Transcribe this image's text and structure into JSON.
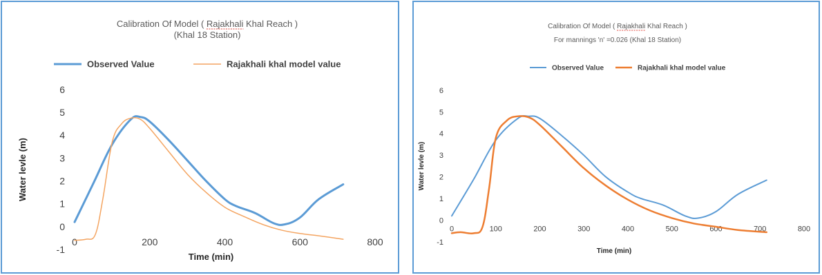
{
  "chart_data": [
    {
      "type": "line",
      "title": "Calibration Of Model ( Rajakhali Khal Reach )",
      "subtitle": "(Khal 18 Station)",
      "underlined_word": "Rajakhali",
      "xlabel": "Time (min)",
      "ylabel": "Water levle (m)",
      "xlim": [
        0,
        800
      ],
      "ylim": [
        -1,
        6
      ],
      "xticks": [
        "0",
        "200",
        "400",
        "600",
        "800"
      ],
      "yticks": [
        "-1",
        "0",
        "1",
        "2",
        "3",
        "4",
        "5",
        "6"
      ],
      "grid": false,
      "legend_position": "top",
      "series": [
        {
          "name": "Observed Value",
          "color": "#5b9bd5",
          "x": [
            0,
            50,
            100,
            150,
            175,
            200,
            250,
            300,
            350,
            400,
            430,
            480,
            530,
            560,
            600,
            650,
            715
          ],
          "y": [
            0.2,
            1.9,
            3.6,
            4.7,
            4.8,
            4.6,
            3.8,
            2.9,
            2.0,
            1.2,
            0.9,
            0.6,
            0.15,
            0.1,
            0.4,
            1.2,
            1.85
          ]
        },
        {
          "name": "Rajakhali khal model value",
          "color": "#f4a460",
          "x": [
            0,
            30,
            55,
            75,
            100,
            125,
            150,
            175,
            200,
            250,
            300,
            350,
            400,
            450,
            500,
            550,
            600,
            650,
            715
          ],
          "y": [
            -0.6,
            -0.55,
            -0.35,
            1.2,
            3.7,
            4.5,
            4.75,
            4.7,
            4.3,
            3.3,
            2.3,
            1.5,
            0.85,
            0.45,
            0.1,
            -0.15,
            -0.3,
            -0.4,
            -0.55
          ]
        }
      ]
    },
    {
      "type": "line",
      "title": "Calibration Of Model ( Rajakhali Khal Reach )",
      "subtitle": "For mannings 'n' =0.026 (Khal 18 Station)",
      "underlined_word": "Rajakhali",
      "xlabel": "Time (min)",
      "ylabel": "Water levle (m)",
      "xlim": [
        0,
        800
      ],
      "ylim": [
        -1,
        6
      ],
      "xticks": [
        "0",
        "100",
        "200",
        "300",
        "400",
        "500",
        "600",
        "700",
        "800"
      ],
      "yticks": [
        "-1",
        "0",
        "1",
        "2",
        "3",
        "4",
        "5",
        "6"
      ],
      "grid": false,
      "legend_position": "top",
      "series": [
        {
          "name": "Observed Value",
          "color": "#5b9bd5",
          "x": [
            0,
            50,
            100,
            150,
            175,
            200,
            250,
            300,
            350,
            400,
            430,
            480,
            530,
            560,
            600,
            650,
            715
          ],
          "y": [
            0.2,
            1.9,
            3.7,
            4.7,
            4.8,
            4.7,
            3.9,
            3.0,
            2.0,
            1.3,
            1.0,
            0.7,
            0.2,
            0.1,
            0.4,
            1.2,
            1.85
          ]
        },
        {
          "name": "Rajakhali khal model value",
          "color": "#ed7d31",
          "x": [
            0,
            20,
            50,
            70,
            85,
            100,
            125,
            150,
            175,
            200,
            250,
            300,
            350,
            400,
            450,
            500,
            550,
            600,
            650,
            715
          ],
          "y": [
            -0.6,
            -0.55,
            -0.6,
            -0.3,
            1.5,
            3.8,
            4.6,
            4.8,
            4.75,
            4.4,
            3.4,
            2.4,
            1.6,
            0.95,
            0.45,
            0.1,
            -0.15,
            -0.3,
            -0.45,
            -0.55
          ]
        }
      ]
    }
  ]
}
